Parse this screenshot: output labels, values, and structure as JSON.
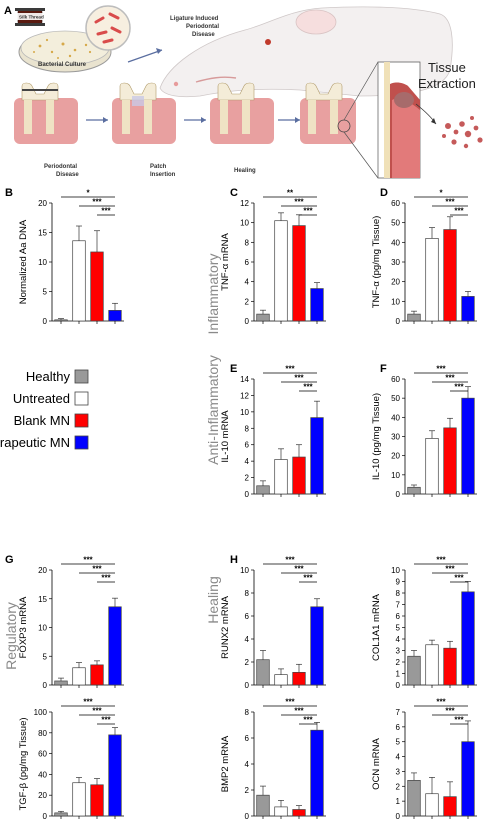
{
  "figure": {
    "panel_a_letter": "A",
    "schematic": {
      "silk_label": "Silk Thread",
      "culture_label": "Bacterial Culture",
      "ligature_line1": "Ligature Induced",
      "ligature_line2": "Periodontal",
      "ligature_line3": "Disease",
      "step1_line1": "Periodontal",
      "step1_line2": "Disease",
      "step2_line1": "Patch",
      "step2_line2": "Insertion",
      "step3": "Healing",
      "tissue_line1": "Tissue",
      "tissue_line2": "Extraction"
    },
    "side_labels": {
      "inflammatory": "Inflammatory",
      "anti_inflammatory": "Anti-Inflammatory",
      "regulatory": "Regulatory",
      "healing": "Healing"
    },
    "colors": {
      "healthy": "#999999",
      "untreated": "#ffffff",
      "blank": "#ff0000",
      "therapeutic": "#0000ff"
    }
  },
  "legend": {
    "items": [
      {
        "label": "Healthy",
        "color": "#999999"
      },
      {
        "label": "Untreated",
        "color": "#ffffff"
      },
      {
        "label": "Blank MN",
        "color": "#ff0000"
      },
      {
        "label": "Therapeutic MN",
        "color": "#0000ff"
      }
    ]
  },
  "chart_data": [
    {
      "letter": "B",
      "type": "bar",
      "ylabel": "Normalized Aa DNA",
      "categories": [
        "Healthy",
        "Untreated",
        "Blank MN",
        "Therapeutic MN"
      ],
      "values": [
        0.2,
        13.6,
        11.7,
        1.8
      ],
      "errors": [
        0.2,
        2.5,
        3.6,
        1.2
      ],
      "ylim": [
        0,
        20
      ],
      "yticks": [
        "0",
        "5",
        "10",
        "15",
        "20"
      ],
      "significance": [
        {
          "from": 0,
          "to": 3,
          "label": "*"
        },
        {
          "from": 1,
          "to": 3,
          "label": "***"
        },
        {
          "from": 2,
          "to": 3,
          "label": "***"
        }
      ]
    },
    {
      "letter": "C",
      "type": "bar",
      "ylabel": "TNF-α mRNA",
      "categories": [
        "Healthy",
        "Untreated",
        "Blank MN",
        "Therapeutic MN"
      ],
      "values": [
        0.7,
        10.2,
        9.7,
        3.3
      ],
      "errors": [
        0.4,
        0.8,
        1.1,
        0.6
      ],
      "ylim": [
        0,
        12
      ],
      "yticks": [
        "0",
        "2",
        "4",
        "6",
        "8",
        "10",
        "12"
      ],
      "significance": [
        {
          "from": 0,
          "to": 3,
          "label": "**"
        },
        {
          "from": 1,
          "to": 3,
          "label": "***"
        },
        {
          "from": 2,
          "to": 3,
          "label": "***"
        }
      ]
    },
    {
      "letter": "D",
      "type": "bar",
      "ylabel": "TNF-α (pg/mg Tissue)",
      "categories": [
        "Healthy",
        "Untreated",
        "Blank MN",
        "Therapeutic MN"
      ],
      "values": [
        3.5,
        42,
        46.5,
        12.5
      ],
      "errors": [
        1.5,
        5.5,
        6.5,
        2.5
      ],
      "ylim": [
        0,
        60
      ],
      "yticks": [
        "0",
        "10",
        "20",
        "30",
        "40",
        "50",
        "60"
      ],
      "significance": [
        {
          "from": 0,
          "to": 3,
          "label": "*"
        },
        {
          "from": 1,
          "to": 3,
          "label": "***"
        },
        {
          "from": 2,
          "to": 3,
          "label": "***"
        }
      ]
    },
    {
      "letter": "E",
      "type": "bar",
      "ylabel": "IL-10 mRNA",
      "categories": [
        "Healthy",
        "Untreated",
        "Blank MN",
        "Therapeutic MN"
      ],
      "values": [
        1.0,
        4.2,
        4.5,
        9.3
      ],
      "errors": [
        0.6,
        1.3,
        1.5,
        2.0
      ],
      "ylim": [
        0,
        14
      ],
      "yticks": [
        "0",
        "2",
        "4",
        "6",
        "8",
        "10",
        "12",
        "14"
      ],
      "significance": [
        {
          "from": 0,
          "to": 3,
          "label": "***"
        },
        {
          "from": 1,
          "to": 3,
          "label": "***"
        },
        {
          "from": 2,
          "to": 3,
          "label": "***"
        }
      ]
    },
    {
      "letter": "F",
      "type": "bar",
      "ylabel": "IL-10 (pg/mg Tissue)",
      "categories": [
        "Healthy",
        "Untreated",
        "Blank MN",
        "Therapeutic MN"
      ],
      "values": [
        3.5,
        29,
        34.5,
        50
      ],
      "errors": [
        1.2,
        4.0,
        5.0,
        6.0
      ],
      "ylim": [
        0,
        60
      ],
      "yticks": [
        "0",
        "10",
        "20",
        "30",
        "40",
        "50",
        "60"
      ],
      "significance": [
        {
          "from": 0,
          "to": 3,
          "label": "***"
        },
        {
          "from": 1,
          "to": 3,
          "label": "***"
        },
        {
          "from": 2,
          "to": 3,
          "label": "***"
        }
      ]
    },
    {
      "letter": "G",
      "type": "bar",
      "ylabel": "FOXP3 mRNA",
      "categories": [
        "Healthy",
        "Untreated",
        "Blank MN",
        "Therapeutic MN"
      ],
      "values": [
        0.7,
        3.0,
        3.5,
        13.6
      ],
      "errors": [
        0.5,
        0.9,
        0.7,
        1.5
      ],
      "ylim": [
        0,
        20
      ],
      "yticks": [
        "0",
        "5",
        "10",
        "15",
        "20"
      ],
      "significance": [
        {
          "from": 0,
          "to": 3,
          "label": "***"
        },
        {
          "from": 1,
          "to": 3,
          "label": "***"
        },
        {
          "from": 2,
          "to": 3,
          "label": "***"
        }
      ]
    },
    {
      "letter": "H",
      "type": "bar",
      "ylabel": "RUNX2 mRNA",
      "categories": [
        "Healthy",
        "Untreated",
        "Blank MN",
        "Therapeutic MN"
      ],
      "values": [
        2.2,
        0.9,
        1.1,
        6.8
      ],
      "errors": [
        0.8,
        0.5,
        0.7,
        0.7
      ],
      "ylim": [
        0,
        10
      ],
      "yticks": [
        "0",
        "2",
        "4",
        "6",
        "8",
        "10"
      ],
      "significance": [
        {
          "from": 0,
          "to": 3,
          "label": "***"
        },
        {
          "from": 1,
          "to": 3,
          "label": "***"
        },
        {
          "from": 2,
          "to": 3,
          "label": "***"
        }
      ]
    },
    {
      "letter": "",
      "type": "bar",
      "ylabel": "COL1A1 mRNA",
      "categories": [
        "Healthy",
        "Untreated",
        "Blank MN",
        "Therapeutic MN"
      ],
      "values": [
        2.5,
        3.5,
        3.2,
        8.1
      ],
      "errors": [
        0.5,
        0.4,
        0.6,
        0.9
      ],
      "ylim": [
        0,
        10
      ],
      "yticks": [
        "0",
        "1",
        "2",
        "3",
        "4",
        "5",
        "6",
        "7",
        "8",
        "9",
        "10"
      ],
      "significance": [
        {
          "from": 0,
          "to": 3,
          "label": "***"
        },
        {
          "from": 1,
          "to": 3,
          "label": "***"
        },
        {
          "from": 2,
          "to": 3,
          "label": "***"
        }
      ]
    },
    {
      "letter": "",
      "type": "bar",
      "ylabel": "TGF-β (pg/mg Tissue)",
      "categories": [
        "Healthy",
        "Untreated",
        "Blank MN",
        "Therapeutic MN"
      ],
      "values": [
        3,
        32,
        30,
        78
      ],
      "errors": [
        1.5,
        5,
        6,
        7
      ],
      "ylim": [
        0,
        100
      ],
      "yticks": [
        "0",
        "20",
        "40",
        "60",
        "80",
        "100"
      ],
      "significance": [
        {
          "from": 0,
          "to": 3,
          "label": "***"
        },
        {
          "from": 1,
          "to": 3,
          "label": "***"
        },
        {
          "from": 2,
          "to": 3,
          "label": "***"
        }
      ]
    },
    {
      "letter": "",
      "type": "bar",
      "ylabel": "BMP2 mRNA",
      "categories": [
        "Healthy",
        "Untreated",
        "Blank MN",
        "Therapeutic MN"
      ],
      "values": [
        1.6,
        0.7,
        0.5,
        6.6
      ],
      "errors": [
        0.7,
        0.5,
        0.3,
        0.6
      ],
      "ylim": [
        0,
        8
      ],
      "yticks": [
        "0",
        "2",
        "4",
        "6",
        "8"
      ],
      "significance": [
        {
          "from": 0,
          "to": 3,
          "label": "***"
        },
        {
          "from": 1,
          "to": 3,
          "label": "***"
        },
        {
          "from": 2,
          "to": 3,
          "label": "***"
        }
      ]
    },
    {
      "letter": "",
      "type": "bar",
      "ylabel": "OCN mRNA",
      "categories": [
        "Healthy",
        "Untreated",
        "Blank MN",
        "Therapeutic MN"
      ],
      "values": [
        2.4,
        1.5,
        1.3,
        5.0
      ],
      "errors": [
        0.5,
        1.1,
        1.0,
        1.4
      ],
      "ylim": [
        0,
        7
      ],
      "yticks": [
        "0",
        "1",
        "2",
        "3",
        "4",
        "5",
        "6",
        "7"
      ],
      "significance": [
        {
          "from": 0,
          "to": 3,
          "label": "***"
        },
        {
          "from": 1,
          "to": 3,
          "label": "***"
        },
        {
          "from": 2,
          "to": 3,
          "label": "***"
        }
      ]
    }
  ]
}
